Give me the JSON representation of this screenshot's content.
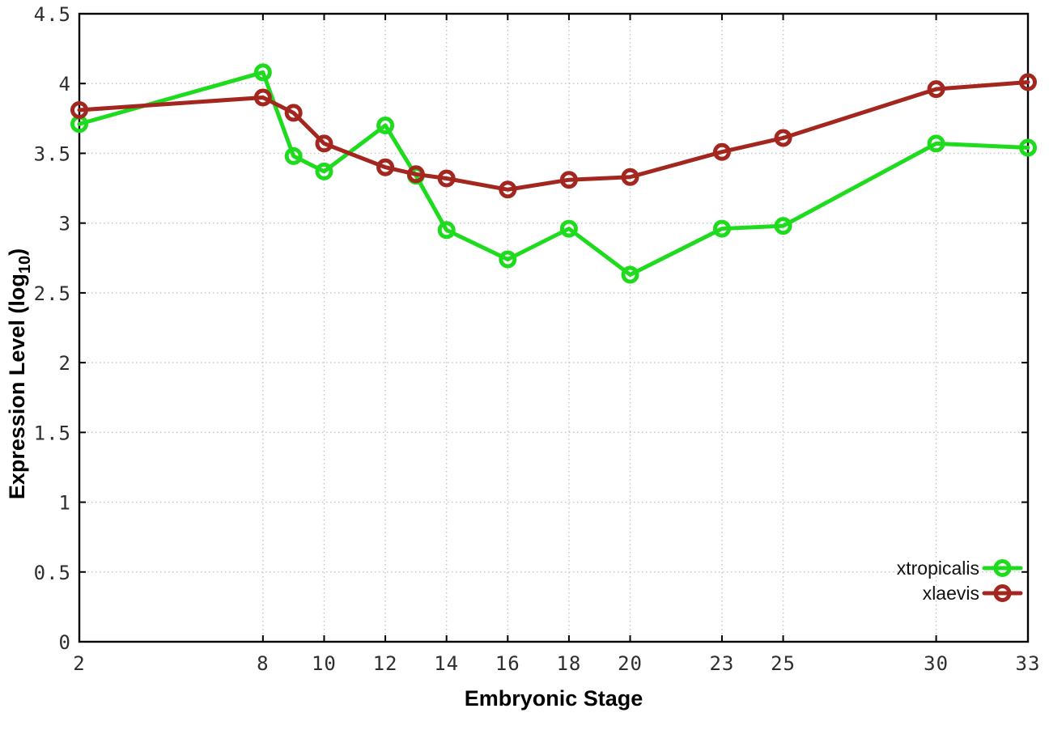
{
  "figure": {
    "background": "#ffffff",
    "border_color": "#000000",
    "grid_color": "#c4c4c4",
    "tick_color": "#000000",
    "tick_label_color": "#2e2e2e"
  },
  "chart_data": {
    "type": "line",
    "title": "",
    "xlabel": "Embryonic Stage",
    "ylabel": {
      "main": "Expression Level (log",
      "subscript": "10",
      "suffix": ")"
    },
    "xlim": [
      2,
      33
    ],
    "ylim": [
      0,
      4.5
    ],
    "grid": true,
    "legend_position": "inside-bottom-right",
    "x": [
      2,
      8,
      9,
      10,
      12,
      13,
      14,
      16,
      18,
      20,
      23,
      25,
      30,
      33
    ],
    "xtick_values": [
      2,
      8,
      10,
      12,
      14,
      16,
      18,
      20,
      23,
      25,
      30,
      33
    ],
    "xtick_labels": [
      "2",
      "8",
      "10",
      "12",
      "14",
      "16",
      "18",
      "20",
      "23",
      "25",
      "30",
      "33"
    ],
    "ytick_values": [
      0,
      0.5,
      1,
      1.5,
      2,
      2.5,
      3,
      3.5,
      4,
      4.5
    ],
    "ytick_labels": [
      "0",
      "0.5",
      "1",
      "1.5",
      "2",
      "2.5",
      "3",
      "3.5",
      "4",
      "4.5"
    ],
    "series": [
      {
        "name": "xtropicalis",
        "color": "#1edb1e",
        "values": [
          3.71,
          4.08,
          3.48,
          3.37,
          3.7,
          3.34,
          2.95,
          2.74,
          2.96,
          2.63,
          2.96,
          2.98,
          3.57,
          3.54
        ]
      },
      {
        "name": "xlaevis",
        "color": "#a3271f",
        "values": [
          3.81,
          3.9,
          3.79,
          3.57,
          3.4,
          3.35,
          3.32,
          3.24,
          3.31,
          3.33,
          3.51,
          3.61,
          3.96,
          4.01
        ]
      }
    ]
  }
}
